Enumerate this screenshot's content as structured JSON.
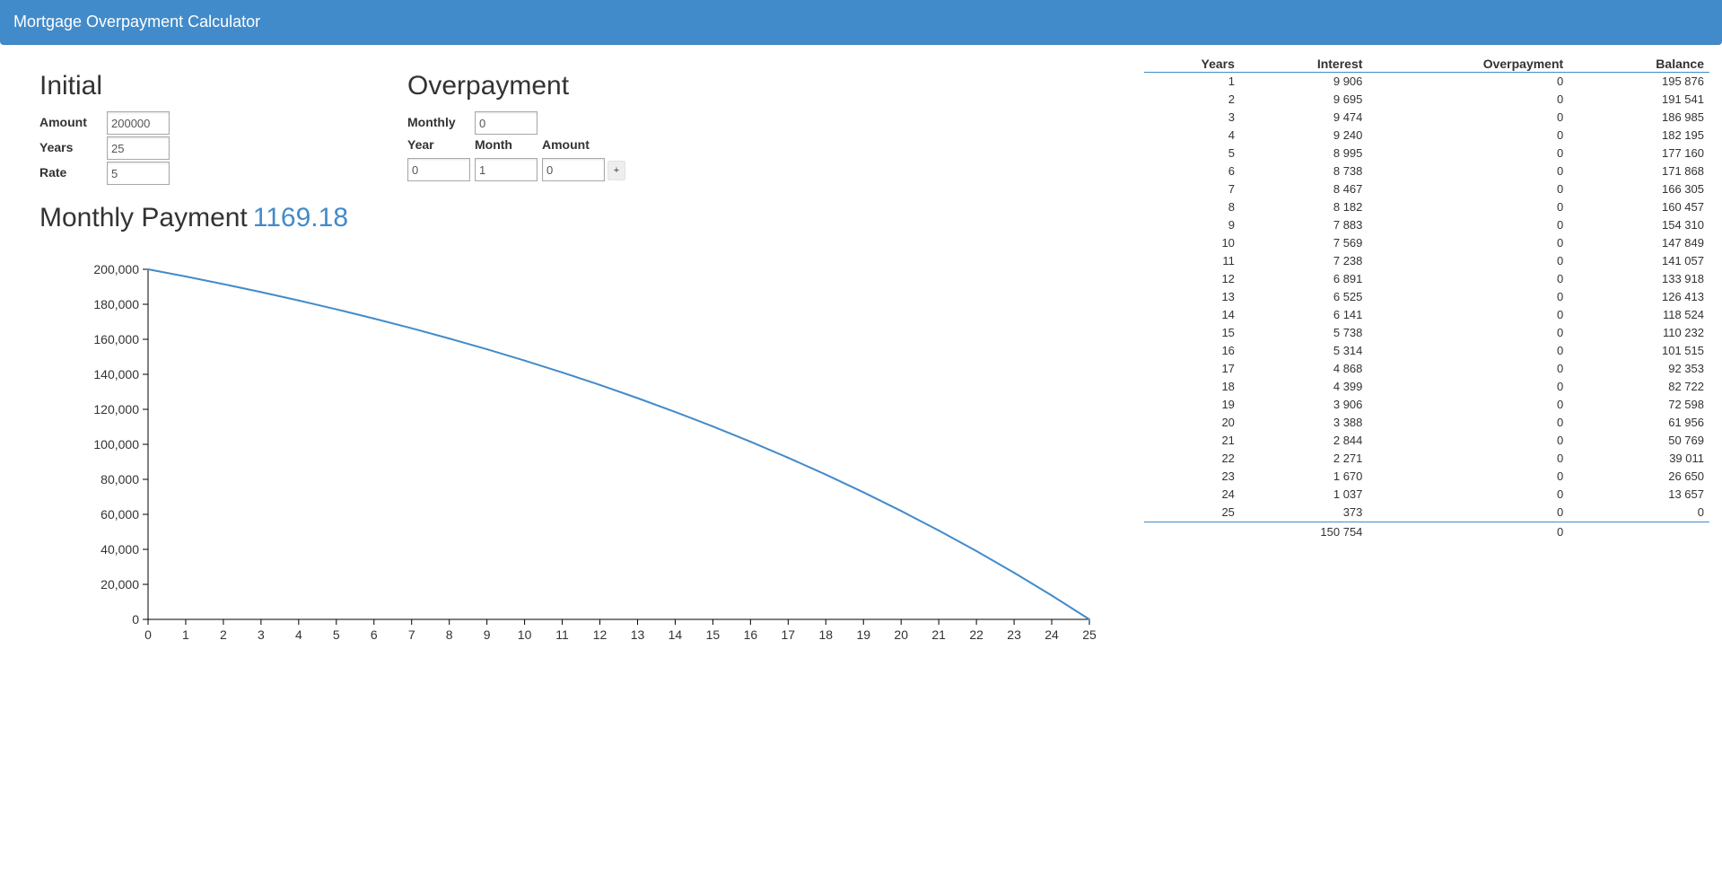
{
  "app": {
    "title": "Mortgage Overpayment Calculator"
  },
  "initial": {
    "heading": "Initial",
    "amount_label": "Amount",
    "amount_value": "200000",
    "years_label": "Years",
    "years_value": "25",
    "rate_label": "Rate",
    "rate_value": "5"
  },
  "overpayment": {
    "heading": "Overpayment",
    "monthly_label": "Monthly",
    "monthly_value": "0",
    "year_label": "Year",
    "month_label": "Month",
    "amount_label": "Amount",
    "year_value": "0",
    "month_value": "1",
    "amount_value": "0",
    "add_label": "+"
  },
  "monthly_payment": {
    "label": "Monthly Payment",
    "value": "1169.18"
  },
  "chart_data": {
    "type": "line",
    "title": "",
    "xlabel": "",
    "ylabel": "",
    "x": [
      0,
      1,
      2,
      3,
      4,
      5,
      6,
      7,
      8,
      9,
      10,
      11,
      12,
      13,
      14,
      15,
      16,
      17,
      18,
      19,
      20,
      21,
      22,
      23,
      24,
      25
    ],
    "series": [
      {
        "values": [
          200000,
          195876,
          191541,
          186985,
          182195,
          177160,
          171868,
          166305,
          160457,
          154310,
          147849,
          141057,
          133918,
          126413,
          118524,
          110232,
          101515,
          92353,
          82722,
          72598,
          61956,
          50769,
          39011,
          26650,
          13657,
          0
        ]
      }
    ],
    "x_ticks": [
      "0",
      "1",
      "2",
      "3",
      "4",
      "5",
      "6",
      "7",
      "8",
      "9",
      "10",
      "11",
      "12",
      "13",
      "14",
      "15",
      "16",
      "17",
      "18",
      "19",
      "20",
      "21",
      "22",
      "23",
      "24",
      "25"
    ],
    "y_ticks": [
      "0",
      "20,000",
      "40,000",
      "60,000",
      "80,000",
      "100,000",
      "120,000",
      "140,000",
      "160,000",
      "180,000",
      "200,000"
    ],
    "xlim": [
      0,
      25
    ],
    "ylim": [
      0,
      200000
    ],
    "grid": false,
    "line_color": "#428bca"
  },
  "table": {
    "headers": [
      "Years",
      "Interest",
      "Overpayment",
      "Balance"
    ],
    "rows": [
      [
        "1",
        "9 906",
        "0",
        "195 876"
      ],
      [
        "2",
        "9 695",
        "0",
        "191 541"
      ],
      [
        "3",
        "9 474",
        "0",
        "186 985"
      ],
      [
        "4",
        "9 240",
        "0",
        "182 195"
      ],
      [
        "5",
        "8 995",
        "0",
        "177 160"
      ],
      [
        "6",
        "8 738",
        "0",
        "171 868"
      ],
      [
        "7",
        "8 467",
        "0",
        "166 305"
      ],
      [
        "8",
        "8 182",
        "0",
        "160 457"
      ],
      [
        "9",
        "7 883",
        "0",
        "154 310"
      ],
      [
        "10",
        "7 569",
        "0",
        "147 849"
      ],
      [
        "11",
        "7 238",
        "0",
        "141 057"
      ],
      [
        "12",
        "6 891",
        "0",
        "133 918"
      ],
      [
        "13",
        "6 525",
        "0",
        "126 413"
      ],
      [
        "14",
        "6 141",
        "0",
        "118 524"
      ],
      [
        "15",
        "5 738",
        "0",
        "110 232"
      ],
      [
        "16",
        "5 314",
        "0",
        "101 515"
      ],
      [
        "17",
        "4 868",
        "0",
        "92 353"
      ],
      [
        "18",
        "4 399",
        "0",
        "82 722"
      ],
      [
        "19",
        "3 906",
        "0",
        "72 598"
      ],
      [
        "20",
        "3 388",
        "0",
        "61 956"
      ],
      [
        "21",
        "2 844",
        "0",
        "50 769"
      ],
      [
        "22",
        "2 271",
        "0",
        "39 011"
      ],
      [
        "23",
        "1 670",
        "0",
        "26 650"
      ],
      [
        "24",
        "1 037",
        "0",
        "13 657"
      ],
      [
        "25",
        "373",
        "0",
        "0"
      ]
    ],
    "totals": {
      "years": "",
      "interest": "150 754",
      "overpayment": "0",
      "balance": ""
    }
  },
  "colors": {
    "accent": "#428bca",
    "navbar_text": "#ffffff",
    "text": "#333333"
  }
}
